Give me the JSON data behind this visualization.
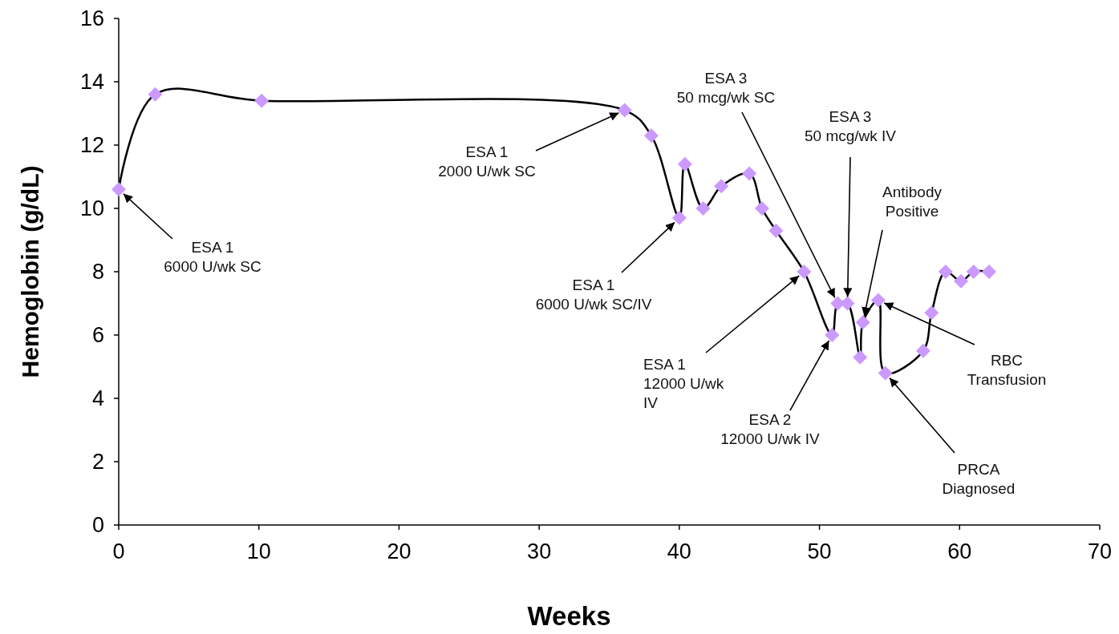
{
  "chart_data": {
    "type": "line",
    "xlabel": "Weeks",
    "ylabel": "Hemoglobin (g/dL)",
    "xlim": [
      0,
      70
    ],
    "xticks": [
      0,
      10,
      20,
      30,
      40,
      50,
      60,
      70
    ],
    "ylim": [
      0,
      16
    ],
    "yticks": [
      0,
      2,
      4,
      6,
      8,
      10,
      12,
      14,
      16
    ],
    "marker": "diamond",
    "grid": false,
    "series": [
      {
        "color": "#cc99ff",
        "x": [
          0,
          2.6,
          10.2,
          36.1,
          38.0,
          40.0,
          40.4,
          41.7,
          43.0,
          45.0,
          45.9,
          46.9,
          48.9,
          50.9,
          51.3,
          52.0,
          52.9,
          53.1,
          54.2,
          54.7,
          57.4,
          58.0,
          59.0,
          60.1,
          61.0,
          62.1
        ],
        "values": [
          10.6,
          13.6,
          13.4,
          13.1,
          12.3,
          9.7,
          11.4,
          10.0,
          10.7,
          11.1,
          10.0,
          9.3,
          8.0,
          6.0,
          7.0,
          7.0,
          5.3,
          6.4,
          7.1,
          4.8,
          5.5,
          6.7,
          8.0,
          7.7,
          8.0,
          8.0
        ]
      }
    ],
    "annotations": [
      {
        "text": "ESA 1\n6000 U/wk SC",
        "x": 0,
        "y": 10.6
      },
      {
        "text": "ESA 1\n2000 U/wk SC",
        "x": 36.1,
        "y": 13.1
      },
      {
        "text": "ESA 1\n6000 U/wk SC/IV",
        "x": 40.0,
        "y": 9.7
      },
      {
        "text": "ESA 1\n12000 U/wk\nIV",
        "x": 48.9,
        "y": 8.0
      },
      {
        "text": "ESA 2\n12000 U/wk IV",
        "x": 50.9,
        "y": 6.0
      },
      {
        "text": "ESA 3\n50 mcg/wk SC",
        "x": 51.3,
        "y": 7.0
      },
      {
        "text": "ESA 3\n50 mcg/wk IV",
        "x": 52.0,
        "y": 7.0
      },
      {
        "text": "Antibody\nPositive",
        "x": 53.1,
        "y": 6.4
      },
      {
        "text": "RBC\nTransfusion",
        "x": 54.2,
        "y": 7.1
      },
      {
        "text": "PRCA\nDiagnosed",
        "x": 54.7,
        "y": 4.8
      }
    ]
  }
}
